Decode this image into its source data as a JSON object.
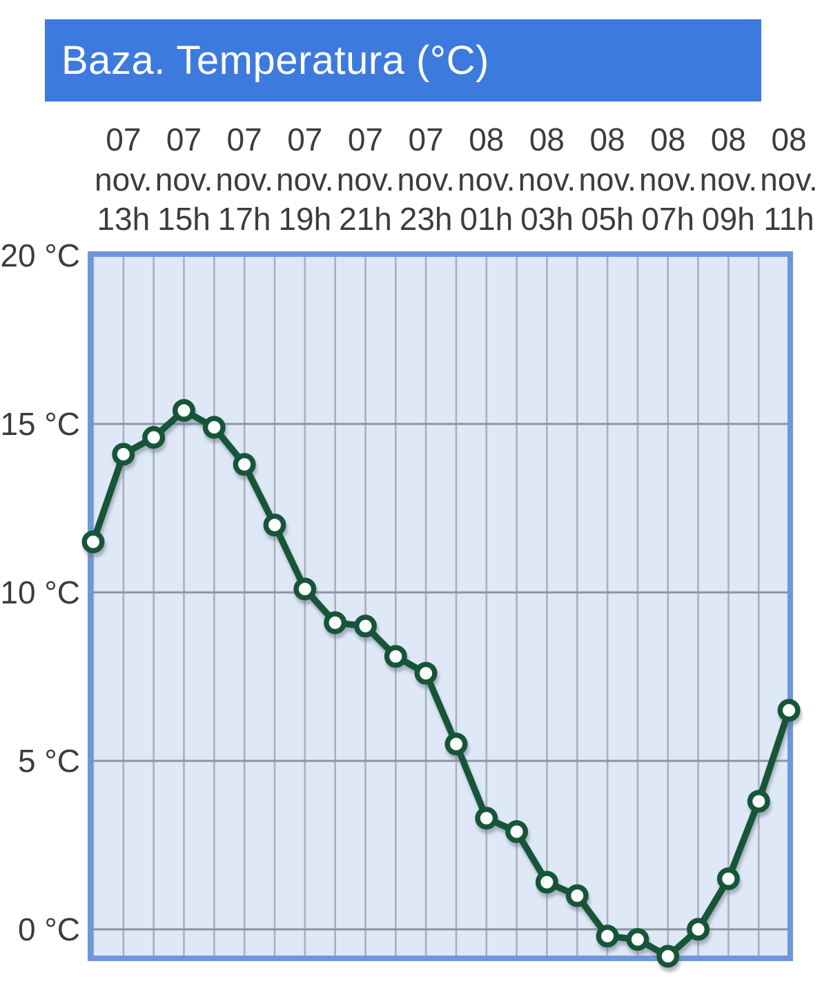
{
  "title": "Baza. Temperatura (°C)",
  "colors": {
    "header_bg": "#3d7add",
    "header_text": "#ffffff",
    "plot_bg": "#dee8f7",
    "plot_border": "#6e96da",
    "grid_vertical": "#a9b0bb",
    "grid_horizontal": "#8d95a1",
    "line": "#145539",
    "marker_fill": "#ffffff",
    "shadow": "#6b7685",
    "axis_text": "#3c3c3c"
  },
  "y_axis": {
    "unit": "°C",
    "ticks": [
      {
        "value": 20,
        "label": "20 °C"
      },
      {
        "value": 15,
        "label": "15 °C"
      },
      {
        "value": 10,
        "label": "10 °C"
      },
      {
        "value": 5,
        "label": "5 °C"
      },
      {
        "value": 0,
        "label": "0 °C"
      }
    ]
  },
  "x_axis": {
    "labels": [
      {
        "day": "07",
        "month": "nov.",
        "hour": "13h"
      },
      {
        "day": "07",
        "month": "nov.",
        "hour": "15h"
      },
      {
        "day": "07",
        "month": "nov.",
        "hour": "17h"
      },
      {
        "day": "07",
        "month": "nov.",
        "hour": "19h"
      },
      {
        "day": "07",
        "month": "nov.",
        "hour": "21h"
      },
      {
        "day": "07",
        "month": "nov.",
        "hour": "23h"
      },
      {
        "day": "08",
        "month": "nov.",
        "hour": "01h"
      },
      {
        "day": "08",
        "month": "nov.",
        "hour": "03h"
      },
      {
        "day": "08",
        "month": "nov.",
        "hour": "05h"
      },
      {
        "day": "08",
        "month": "nov.",
        "hour": "07h"
      },
      {
        "day": "08",
        "month": "nov.",
        "hour": "09h"
      },
      {
        "day": "08",
        "month": "nov.",
        "hour": "11h"
      }
    ]
  },
  "chart_data": {
    "type": "line",
    "title": "Baza. Temperatura (°C)",
    "xlabel": "",
    "ylabel": "°C",
    "ylim": [
      -0.8,
      20
    ],
    "grid": true,
    "legend": "none",
    "series": [
      {
        "name": "Temperatura",
        "points": [
          {
            "day": "07 nov.",
            "hour": "12h",
            "temp": 11.5
          },
          {
            "day": "07 nov.",
            "hour": "13h",
            "temp": 14.1
          },
          {
            "day": "07 nov.",
            "hour": "14h",
            "temp": 14.6
          },
          {
            "day": "07 nov.",
            "hour": "15h",
            "temp": 15.4
          },
          {
            "day": "07 nov.",
            "hour": "16h",
            "temp": 14.9
          },
          {
            "day": "07 nov.",
            "hour": "17h",
            "temp": 13.8
          },
          {
            "day": "07 nov.",
            "hour": "18h",
            "temp": 12.0
          },
          {
            "day": "07 nov.",
            "hour": "19h",
            "temp": 10.1
          },
          {
            "day": "07 nov.",
            "hour": "20h",
            "temp": 9.1
          },
          {
            "day": "07 nov.",
            "hour": "21h",
            "temp": 9.0
          },
          {
            "day": "07 nov.",
            "hour": "22h",
            "temp": 8.1
          },
          {
            "day": "07 nov.",
            "hour": "23h",
            "temp": 7.6
          },
          {
            "day": "08 nov.",
            "hour": "00h",
            "temp": 5.5
          },
          {
            "day": "08 nov.",
            "hour": "01h",
            "temp": 3.3
          },
          {
            "day": "08 nov.",
            "hour": "02h",
            "temp": 2.9
          },
          {
            "day": "08 nov.",
            "hour": "03h",
            "temp": 1.4
          },
          {
            "day": "08 nov.",
            "hour": "04h",
            "temp": 1.0
          },
          {
            "day": "08 nov.",
            "hour": "05h",
            "temp": -0.2
          },
          {
            "day": "08 nov.",
            "hour": "06h",
            "temp": -0.3
          },
          {
            "day": "08 nov.",
            "hour": "07h",
            "temp": -0.8
          },
          {
            "day": "08 nov.",
            "hour": "08h",
            "temp": 0.0
          },
          {
            "day": "08 nov.",
            "hour": "09h",
            "temp": 1.5
          },
          {
            "day": "08 nov.",
            "hour": "10h",
            "temp": 3.8
          },
          {
            "day": "08 nov.",
            "hour": "11h",
            "temp": 6.5
          }
        ]
      }
    ]
  }
}
